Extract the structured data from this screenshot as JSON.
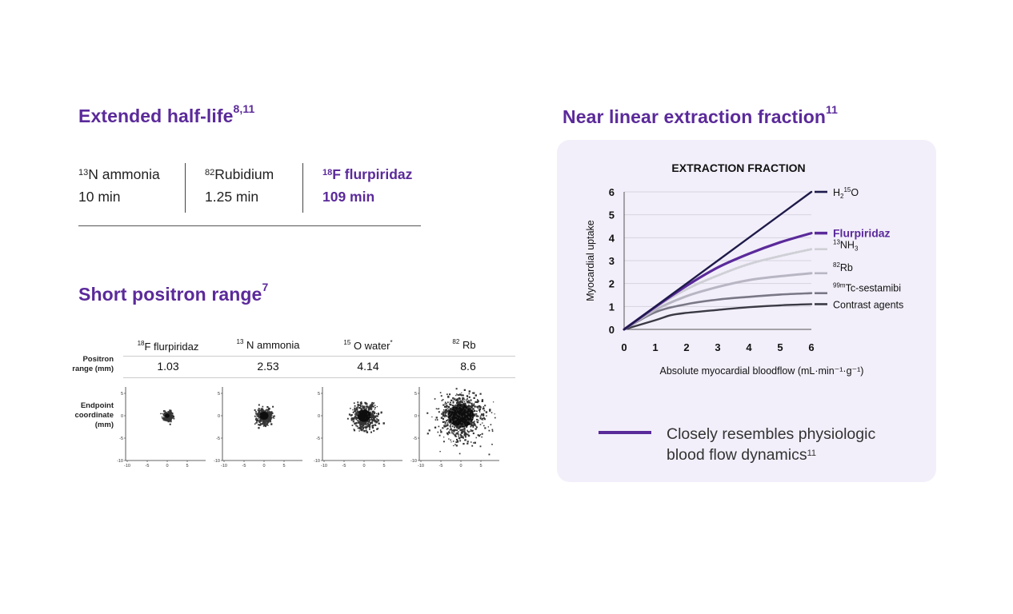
{
  "half_life": {
    "title": "Extended half-life",
    "title_refs": "8,11",
    "items": [
      {
        "iso": "13",
        "name": "N ammonia",
        "value": "10 min"
      },
      {
        "iso": "82",
        "name": "Rubidium",
        "value": "1.25 min"
      },
      {
        "iso": "18",
        "name": "F flurpiridaz",
        "value": "109 min"
      }
    ]
  },
  "positron": {
    "title": "Short positron range",
    "title_ref": "7",
    "row_label_range": [
      "Positron",
      "range (mm)"
    ],
    "row_label_endpoint": [
      "Endpoint",
      "coordinate",
      "(mm)"
    ],
    "tracers": [
      {
        "iso": "18",
        "name": "F flurpiridaz",
        "range": "1.03",
        "marker": ""
      },
      {
        "iso": "13",
        "name": " N ammonia",
        "range": "2.53",
        "marker": ""
      },
      {
        "iso": "15",
        "name": " O water",
        "range": "4.14",
        "marker": "*"
      },
      {
        "iso": "82",
        "name": " Rb",
        "range": "8.6",
        "marker": ""
      }
    ],
    "scatter_ticks": [
      "5",
      "0",
      "-5",
      "-10"
    ],
    "scatter_xticks": [
      "-10",
      "-5",
      "0",
      "5"
    ]
  },
  "extraction": {
    "title": "Near linear extraction fraction",
    "title_ref": "11",
    "legend_text_line1": "Closely resembles physiologic",
    "legend_text_line2": "blood flow dynamics",
    "legend_ref": "11"
  },
  "chart_data": {
    "type": "line",
    "title": "EXTRACTION FRACTION",
    "xlabel": "Absolute myocardial bloodflow (mL·min⁻¹·g⁻¹)",
    "ylabel": "Myocardial uptake",
    "xlim": [
      0,
      6
    ],
    "ylim": [
      0,
      6
    ],
    "xticks": [
      0,
      1,
      2,
      3,
      4,
      5,
      6
    ],
    "yticks": [
      0,
      1,
      2,
      3,
      4,
      5,
      6
    ],
    "grid": "horizontal",
    "series": [
      {
        "name": "H2 15O",
        "label": "H",
        "label_sub": "2",
        "label_sup": "15",
        "label_tail": "O",
        "color": "#1e1a4a",
        "style": "solid",
        "width": 2.4,
        "x": [
          0,
          1,
          2,
          3,
          4,
          5,
          6
        ],
        "y": [
          0,
          1,
          2,
          3,
          4,
          5,
          6
        ]
      },
      {
        "name": "Flurpiridaz",
        "label": "Flurpiridaz",
        "color": "#5b2a9a",
        "style": "solid",
        "width": 3.2,
        "x": [
          0,
          1,
          2,
          3,
          4,
          5,
          6
        ],
        "y": [
          0,
          0.98,
          1.9,
          2.7,
          3.3,
          3.8,
          4.2
        ]
      },
      {
        "name": "13NH3",
        "label": "NH",
        "label_sup": "13",
        "label_sub": "3",
        "color": "#cfcfd6",
        "style": "dotted",
        "width": 3,
        "x": [
          0,
          1,
          2,
          3,
          4,
          5,
          6
        ],
        "y": [
          0,
          0.95,
          1.75,
          2.35,
          2.85,
          3.2,
          3.5
        ]
      },
      {
        "name": "82Rb",
        "label": "Rb",
        "label_sup": "82",
        "color": "#b9b6c4",
        "style": "solid",
        "width": 3,
        "x": [
          0,
          1,
          2,
          3,
          4,
          5,
          6
        ],
        "y": [
          0,
          0.85,
          1.45,
          1.85,
          2.15,
          2.32,
          2.45
        ]
      },
      {
        "name": "99mTc-sestamibi",
        "label": "Tc-sestamibi",
        "label_sup": "99m",
        "color": "#7a7786",
        "style": "solid",
        "width": 2.6,
        "x": [
          0,
          1,
          2,
          3,
          4,
          5,
          6
        ],
        "y": [
          0,
          0.75,
          1.1,
          1.3,
          1.42,
          1.52,
          1.58
        ]
      },
      {
        "name": "Contrast agents",
        "label": "Contrast agents",
        "color": "#3a3a44",
        "style": "solid",
        "width": 2.4,
        "x": [
          0,
          1,
          1.5,
          2,
          3,
          4,
          5,
          6
        ],
        "y": [
          0,
          0.4,
          0.62,
          0.72,
          0.85,
          0.97,
          1.05,
          1.1
        ]
      }
    ]
  }
}
